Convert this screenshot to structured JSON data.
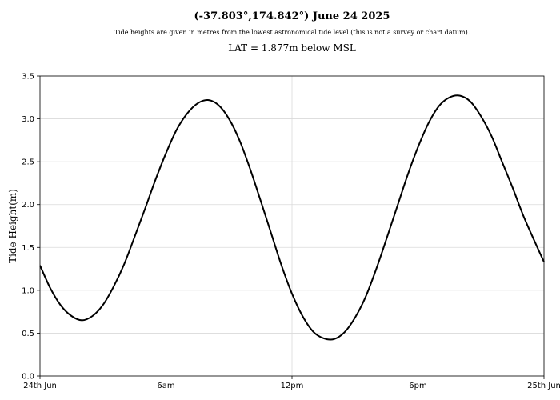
{
  "chart_data": {
    "type": "line",
    "title": "(-37.803°,174.842°) June 24 2025",
    "subtitle": "Tide heights are given in metres from the lowest astronomical tide level (this is not a survey or chart datum).",
    "subtitle2": "LAT = 1.877m below MSL",
    "xlabel": "",
    "ylabel": "Tide Height(m)",
    "xlim": [
      0,
      24
    ],
    "ylim": [
      0,
      3.5
    ],
    "grid": true,
    "x_ticks": [
      {
        "value": 0,
        "label": "24th Jun"
      },
      {
        "value": 6,
        "label": "6am"
      },
      {
        "value": 12,
        "label": "12pm"
      },
      {
        "value": 18,
        "label": "6pm"
      },
      {
        "value": 24,
        "label": "25th Jun"
      }
    ],
    "y_ticks": [
      {
        "value": 0,
        "label": "0.0"
      },
      {
        "value": 0.5,
        "label": "0.5"
      },
      {
        "value": 1.0,
        "label": "1.0"
      },
      {
        "value": 1.5,
        "label": "1.5"
      },
      {
        "value": 2.0,
        "label": "2.0"
      },
      {
        "value": 2.5,
        "label": "2.5"
      },
      {
        "value": 3.0,
        "label": "3.0"
      },
      {
        "value": 3.5,
        "label": "3.5"
      }
    ],
    "series": [
      {
        "color": "#000000",
        "x": [
          0,
          0.5,
          1,
          1.5,
          2,
          2.5,
          3,
          3.5,
          4,
          4.5,
          5,
          5.5,
          6,
          6.5,
          7,
          7.5,
          8,
          8.5,
          9,
          9.5,
          10,
          10.5,
          11,
          11.5,
          12,
          12.5,
          13,
          13.5,
          14,
          14.5,
          15,
          15.5,
          16,
          16.5,
          17,
          17.5,
          18,
          18.5,
          19,
          19.5,
          20,
          20.5,
          21,
          21.5,
          22,
          22.5,
          23,
          23.5,
          24
        ],
        "values": [
          1.29,
          1.02,
          0.82,
          0.7,
          0.65,
          0.7,
          0.83,
          1.04,
          1.3,
          1.62,
          1.95,
          2.29,
          2.6,
          2.87,
          3.06,
          3.18,
          3.22,
          3.16,
          3.0,
          2.75,
          2.42,
          2.05,
          1.67,
          1.29,
          0.96,
          0.7,
          0.52,
          0.44,
          0.43,
          0.51,
          0.68,
          0.92,
          1.24,
          1.6,
          1.97,
          2.34,
          2.67,
          2.95,
          3.15,
          3.25,
          3.27,
          3.2,
          3.03,
          2.8,
          2.5,
          2.2,
          1.88,
          1.6,
          1.33
        ]
      }
    ]
  }
}
